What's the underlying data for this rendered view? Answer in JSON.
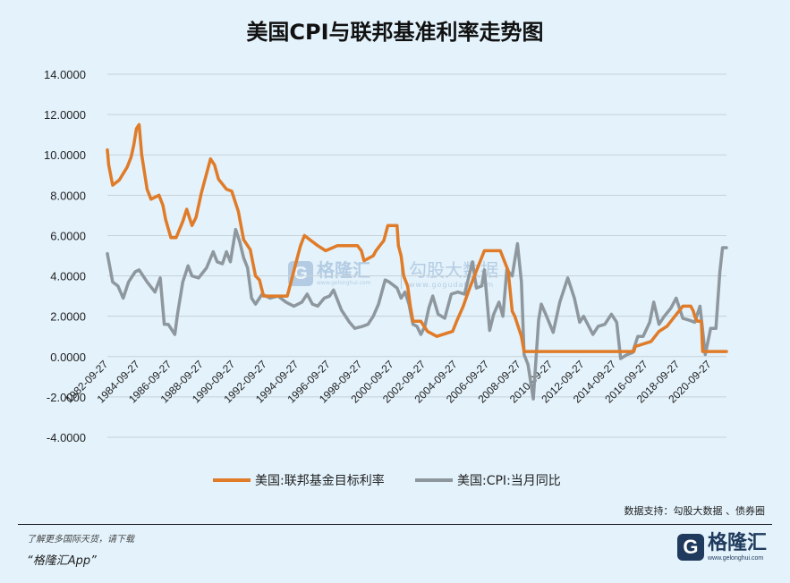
{
  "title": "美国CPI与联邦基准利率走势图",
  "source": "数据支持：勾股大数据 、债券圈",
  "footer": {
    "note1": "了解更多国际天货，请下载",
    "note2": "“格隆汇App”",
    "brand_icon": "G",
    "brand_name": "格隆汇",
    "brand_url": "www.gelonghui.com"
  },
  "watermark": {
    "brand": "格隆汇",
    "brand_url": "www.gelonghui.com",
    "brand2": "勾股大数据",
    "brand2_url": "www.gogudata.com"
  },
  "colors": {
    "fed_rate": "#e07b28",
    "cpi": "#8e979d",
    "grid": "#c7d1d8",
    "background": "#e3f2fb"
  },
  "chart_data": {
    "type": "line",
    "ylim": [
      -4,
      14
    ],
    "yticks": [
      "14.0000",
      "12.0000",
      "10.0000",
      "8.0000",
      "6.0000",
      "4.0000",
      "2.0000",
      "0.0000",
      "-2.0000",
      "-4.0000"
    ],
    "xlim": [
      "1982-09",
      "2021-09"
    ],
    "xticks": [
      "1982-09-27",
      "1984-09-27",
      "1986-09-27",
      "1988-09-27",
      "1990-09-27",
      "1992-09-27",
      "1994-09-27",
      "1996-09-27",
      "1998-09-27",
      "2000-09-27",
      "2002-09-27",
      "2004-09-27",
      "2006-09-27",
      "2008-09-27",
      "2010-09-27",
      "2012-09-27",
      "2014-09-27",
      "2016-09-27",
      "2018-09-27",
      "2020-09-27"
    ],
    "grid": true,
    "legend": "bottom",
    "series": [
      {
        "name": "美国:联邦基金目标利率",
        "x": [
          "1982-09",
          "1982-10",
          "1983-01",
          "1983-06",
          "1983-12",
          "1984-03",
          "1984-05",
          "1984-07",
          "1984-09",
          "1984-11",
          "1985-03",
          "1985-06",
          "1985-12",
          "1986-03",
          "1986-05",
          "1986-09",
          "1987-01",
          "1987-06",
          "1987-09",
          "1988-01",
          "1988-04",
          "1988-08",
          "1989-03",
          "1989-06",
          "1989-09",
          "1990-03",
          "1990-07",
          "1990-12",
          "1991-04",
          "1991-09",
          "1992-01",
          "1992-04",
          "1992-07",
          "1993-06",
          "1994-01",
          "1994-02",
          "1994-05",
          "1994-08",
          "1994-11",
          "1995-02",
          "1995-07",
          "1995-12",
          "1996-06",
          "1997-03",
          "1998-06",
          "1998-09",
          "1998-10",
          "1998-11",
          "1999-06",
          "1999-08",
          "1999-11",
          "2000-02",
          "2000-05",
          "2000-12",
          "2001-01",
          "2001-03",
          "2001-05",
          "2001-08",
          "2001-10",
          "2001-12",
          "2002-06",
          "2002-11",
          "2003-06",
          "2004-06",
          "2004-09",
          "2005-02",
          "2005-06",
          "2005-12",
          "2006-06",
          "2007-06",
          "2007-09",
          "2007-12",
          "2008-03",
          "2008-05",
          "2008-10",
          "2008-12",
          "2015-11",
          "2015-12",
          "2016-12",
          "2017-06",
          "2017-12",
          "2018-06",
          "2018-12",
          "2019-06",
          "2019-08",
          "2019-09",
          "2019-11",
          "2020-02",
          "2020-03",
          "2021-09"
        ],
        "values": [
          10.25,
          9.5,
          8.5,
          8.75,
          9.4,
          9.9,
          10.5,
          11.3,
          11.5,
          10.0,
          8.3,
          7.8,
          8.0,
          7.5,
          6.8,
          5.9,
          5.9,
          6.7,
          7.3,
          6.5,
          6.9,
          8.1,
          9.8,
          9.5,
          8.8,
          8.3,
          8.2,
          7.2,
          5.8,
          5.3,
          4.0,
          3.8,
          3.0,
          3.0,
          3.0,
          3.25,
          4.0,
          4.75,
          5.5,
          6.0,
          5.75,
          5.5,
          5.25,
          5.5,
          5.5,
          5.25,
          5.0,
          4.75,
          5.0,
          5.25,
          5.5,
          5.75,
          6.5,
          6.5,
          5.5,
          5.0,
          4.0,
          3.5,
          2.5,
          1.75,
          1.75,
          1.25,
          1.0,
          1.25,
          1.75,
          2.5,
          3.25,
          4.25,
          5.25,
          5.25,
          4.75,
          4.25,
          2.25,
          2.0,
          1.0,
          0.25,
          0.25,
          0.5,
          0.75,
          1.25,
          1.5,
          2.0,
          2.5,
          2.5,
          2.25,
          2.0,
          1.75,
          1.75,
          0.25,
          0.25
        ]
      },
      {
        "name": "美国:CPI:当月同比",
        "x": [
          "1982-09",
          "1983-01",
          "1983-05",
          "1983-09",
          "1984-01",
          "1984-06",
          "1984-09",
          "1985-03",
          "1985-09",
          "1986-01",
          "1986-04",
          "1986-07",
          "1986-12",
          "1987-02",
          "1987-06",
          "1987-10",
          "1988-01",
          "1988-06",
          "1988-12",
          "1989-05",
          "1989-08",
          "1989-12",
          "1990-03",
          "1990-06",
          "1990-10",
          "1991-01",
          "1991-04",
          "1991-07",
          "1991-10",
          "1992-01",
          "1992-06",
          "1992-12",
          "1993-06",
          "1993-12",
          "1994-06",
          "1994-12",
          "1995-04",
          "1995-08",
          "1995-12",
          "1996-05",
          "1996-09",
          "1996-12",
          "1997-06",
          "1997-12",
          "1998-04",
          "1998-10",
          "1999-02",
          "1999-06",
          "1999-10",
          "2000-03",
          "2000-06",
          "2000-12",
          "2001-03",
          "2001-06",
          "2001-09",
          "2001-12",
          "2002-03",
          "2002-06",
          "2002-09",
          "2002-12",
          "2003-03",
          "2003-07",
          "2003-12",
          "2004-05",
          "2004-10",
          "2005-03",
          "2005-09",
          "2005-12",
          "2006-04",
          "2006-06",
          "2006-10",
          "2007-01",
          "2007-05",
          "2007-08",
          "2007-11",
          "2008-03",
          "2008-07",
          "2008-10",
          "2008-12",
          "2009-03",
          "2009-07",
          "2009-11",
          "2010-01",
          "2010-05",
          "2010-10",
          "2011-03",
          "2011-09",
          "2012-02",
          "2012-06",
          "2012-09",
          "2013-04",
          "2013-08",
          "2014-01",
          "2014-06",
          "2014-10",
          "2015-01",
          "2015-06",
          "2015-10",
          "2016-02",
          "2016-06",
          "2016-11",
          "2017-02",
          "2017-06",
          "2017-10",
          "2018-03",
          "2018-07",
          "2018-12",
          "2019-05",
          "2019-09",
          "2020-01",
          "2020-05",
          "2020-09",
          "2021-01",
          "2021-04",
          "2021-06",
          "2021-09"
        ],
        "values": [
          5.1,
          3.7,
          3.5,
          2.9,
          3.7,
          4.2,
          4.3,
          3.7,
          3.2,
          3.9,
          1.6,
          1.6,
          1.1,
          2.1,
          3.7,
          4.5,
          4.0,
          3.9,
          4.4,
          5.2,
          4.7,
          4.6,
          5.2,
          4.7,
          6.3,
          5.7,
          4.9,
          4.4,
          2.9,
          2.6,
          3.1,
          2.9,
          3.0,
          2.7,
          2.5,
          2.7,
          3.1,
          2.6,
          2.5,
          2.9,
          3.0,
          3.3,
          2.3,
          1.7,
          1.4,
          1.5,
          1.6,
          2.0,
          2.6,
          3.8,
          3.7,
          3.4,
          2.9,
          3.2,
          2.6,
          1.6,
          1.5,
          1.1,
          1.5,
          2.4,
          3.0,
          2.1,
          1.9,
          3.1,
          3.2,
          3.1,
          4.7,
          3.4,
          3.5,
          4.3,
          1.3,
          2.1,
          2.7,
          2.0,
          4.3,
          4.0,
          5.6,
          3.7,
          0.1,
          -0.4,
          -2.1,
          1.8,
          2.6,
          2.0,
          1.2,
          2.7,
          3.9,
          2.9,
          1.7,
          2.0,
          1.1,
          1.5,
          1.6,
          2.1,
          1.7,
          -0.1,
          0.1,
          0.2,
          1.0,
          1.0,
          1.7,
          2.7,
          1.6,
          2.0,
          2.4,
          2.9,
          1.9,
          1.8,
          1.7,
          2.5,
          0.1,
          1.4,
          1.4,
          4.2,
          5.4,
          5.4
        ]
      }
    ]
  }
}
